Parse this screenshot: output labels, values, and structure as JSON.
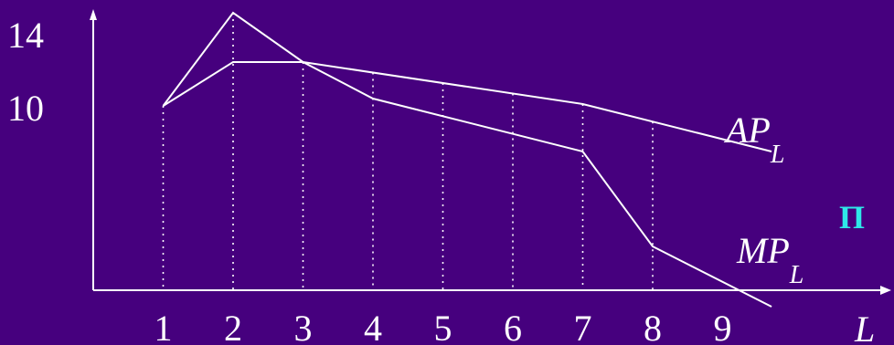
{
  "chart_data": {
    "type": "line",
    "x": [
      1,
      2,
      3,
      4,
      5,
      6,
      7,
      8,
      9
    ],
    "series": [
      {
        "name": "AP",
        "subscript": "L",
        "x": [
          1,
          2,
          3,
          7,
          9.7
        ],
        "values": [
          10.1,
          12.5,
          12.5,
          10.2,
          7.6
        ]
      },
      {
        "name": "MP",
        "subscript": "L",
        "x": [
          1,
          2,
          3,
          4,
          7,
          8,
          9.7
        ],
        "values": [
          10.1,
          15.2,
          12.5,
          10.5,
          7.6,
          2.4,
          -0.9
        ]
      }
    ],
    "x_ticks": [
      "1",
      "2",
      "3",
      "4",
      "5",
      "6",
      "7",
      "8",
      "9"
    ],
    "y_ticks": [
      "10",
      "14"
    ],
    "xlabel": "L",
    "ylabel": "",
    "xlim": [
      0,
      10
    ],
    "ylim": [
      -3.2,
      16.5
    ],
    "grid": false,
    "dotted_guides": true,
    "legend": "none",
    "cut_text": "П",
    "colors": {
      "background": "#46007e",
      "line": "#ffffff",
      "cut_text": "#2ee8e8"
    }
  }
}
